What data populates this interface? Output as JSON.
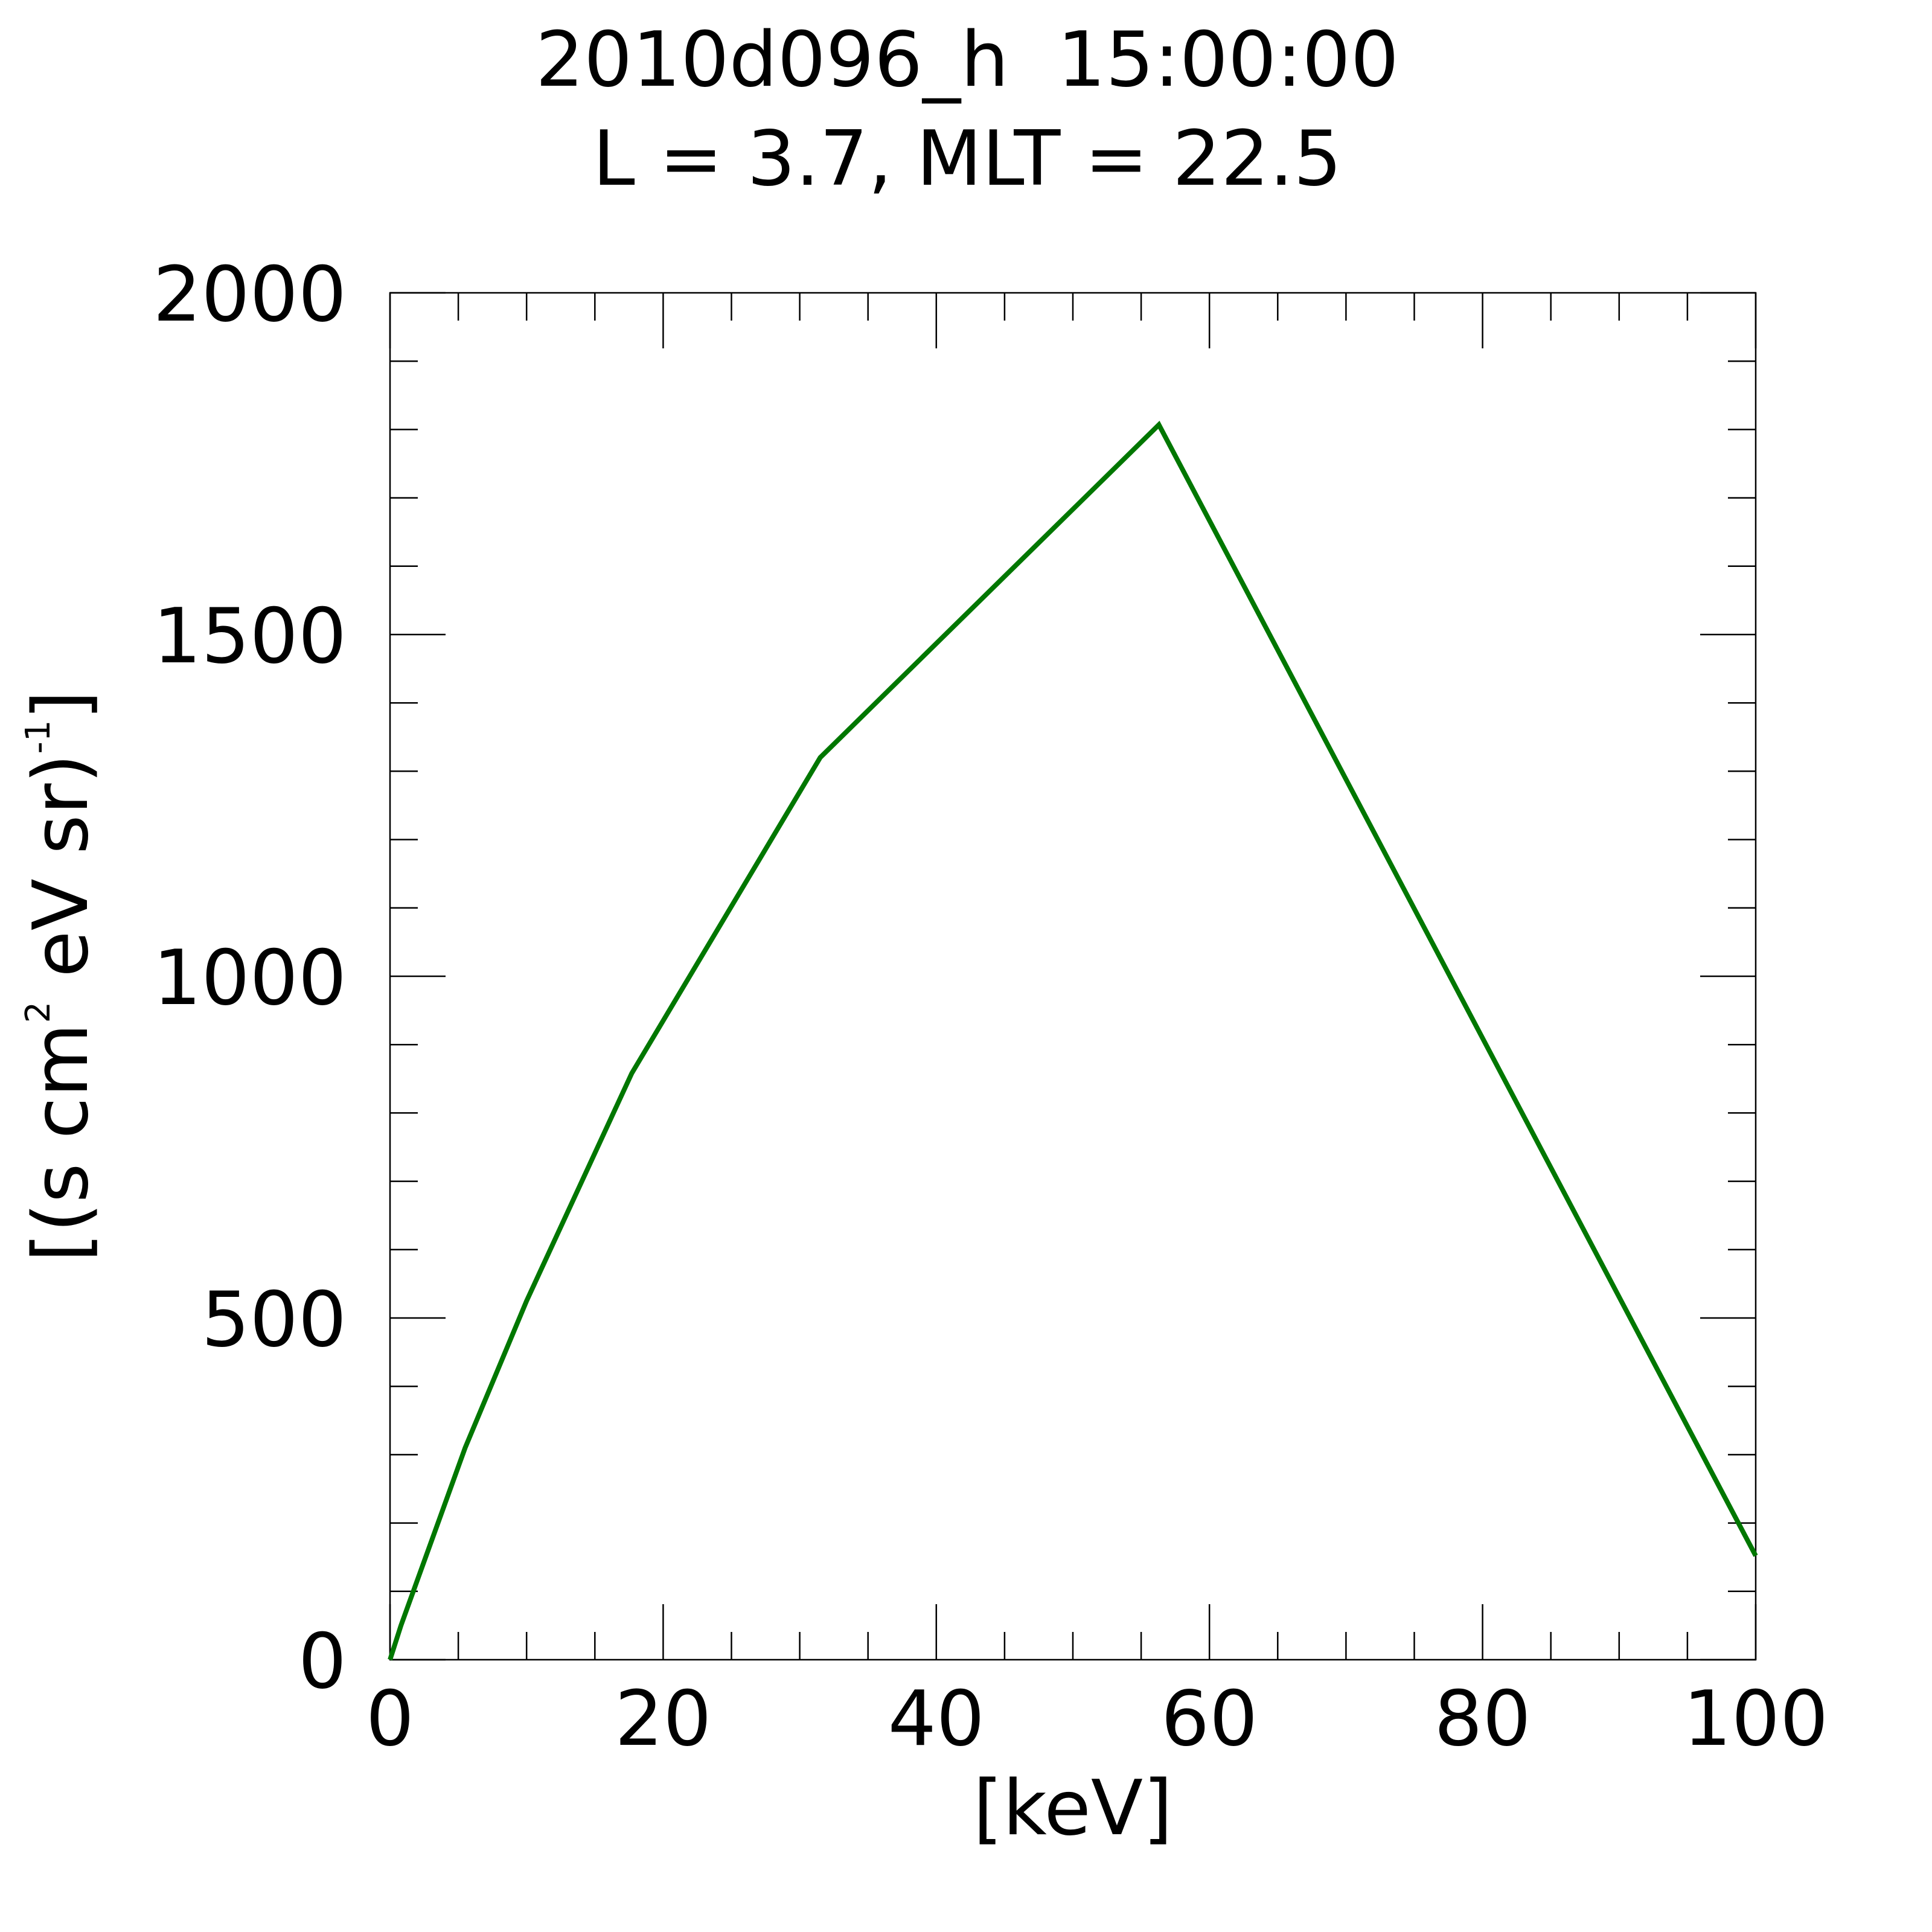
{
  "chart_data": {
    "type": "line",
    "title_line1": "2010d096_h  15:00:00",
    "title_line2": "L = 3.7, MLT = 22.5",
    "xlabel": "[keV]",
    "ylabel": {
      "prefix": "[(s cm",
      "sup1": "2",
      "middle": " eV sr)",
      "sup2": "-1",
      "suffix": "]"
    },
    "xlim": [
      0,
      100
    ],
    "ylim": [
      0,
      2000
    ],
    "x_ticks": [
      "0",
      "20",
      "40",
      "60",
      "80",
      "100"
    ],
    "y_ticks": [
      "0",
      "500",
      "1000",
      "1500",
      "2000"
    ],
    "x_minor_step": 5,
    "y_minor_step": 100,
    "grid": false,
    "series": [
      {
        "color": "#007700",
        "x": [
          0,
          0.8,
          5.5,
          10,
          17.7,
          31.5,
          56.3,
          100
        ],
        "y": [
          0,
          50,
          310,
          525,
          858,
          1320,
          1807,
          152
        ]
      }
    ]
  }
}
